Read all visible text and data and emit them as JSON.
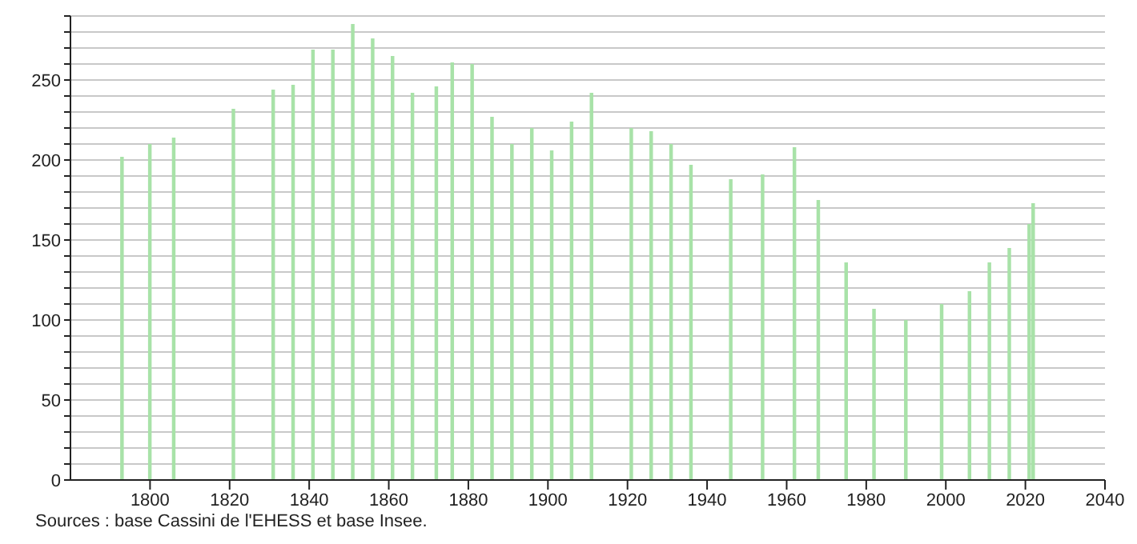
{
  "chart_data": {
    "type": "bar",
    "x": [
      1793,
      1800,
      1806,
      1821,
      1831,
      1836,
      1841,
      1846,
      1851,
      1856,
      1861,
      1866,
      1872,
      1876,
      1881,
      1886,
      1891,
      1896,
      1901,
      1906,
      1911,
      1921,
      1926,
      1931,
      1936,
      1946,
      1954,
      1962,
      1968,
      1975,
      1982,
      1990,
      1999,
      2006,
      2011,
      2016,
      2021,
      2022
    ],
    "values": [
      202,
      210,
      214,
      232,
      244,
      247,
      269,
      269,
      285,
      276,
      265,
      242,
      246,
      261,
      260,
      227,
      210,
      220,
      206,
      224,
      242,
      220,
      218,
      210,
      197,
      188,
      191,
      208,
      175,
      136,
      107,
      100,
      110,
      118,
      136,
      145,
      160,
      173
    ],
    "color": "#a8e2a8",
    "xlim": [
      1780,
      2040
    ],
    "xticks": [
      1800,
      1820,
      1840,
      1860,
      1880,
      1900,
      1920,
      1940,
      1960,
      1980,
      2000,
      2020,
      2040
    ],
    "ylim": [
      0,
      290
    ],
    "yticks": [
      0,
      {
        "value": 10,
        "label": null
      },
      {
        "value": 20,
        "label": null
      },
      {
        "value": 30,
        "label": null
      },
      {
        "value": 40,
        "label": null
      },
      50,
      {
        "value": 60,
        "label": null
      },
      {
        "value": 70,
        "label": null
      },
      {
        "value": 80,
        "label": null
      },
      {
        "value": 90,
        "label": null
      },
      100,
      {
        "value": 110,
        "label": null
      },
      {
        "value": 120,
        "label": null
      },
      {
        "value": 130,
        "label": null
      },
      {
        "value": 140,
        "label": null
      },
      150,
      {
        "value": 160,
        "label": null
      },
      {
        "value": 170,
        "label": null
      },
      {
        "value": 180,
        "label": null
      },
      {
        "value": 190,
        "label": null
      },
      200,
      {
        "value": 210,
        "label": null
      },
      {
        "value": 220,
        "label": null
      },
      {
        "value": 230,
        "label": null
      },
      {
        "value": 240,
        "label": null
      },
      250,
      {
        "value": 260,
        "label": null
      },
      {
        "value": 270,
        "label": null
      },
      {
        "value": 280,
        "label": null
      },
      {
        "value": 290,
        "label": null
      }
    ],
    "grid": "y",
    "annotations": [
      "Sources : base Cassini de l'EHESS et base Insee."
    ]
  }
}
